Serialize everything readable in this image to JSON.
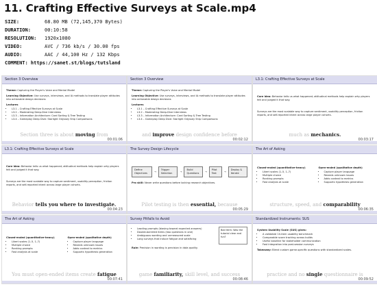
{
  "header": {
    "title": "11. Crafting Effective Surveys at Scale.mp4",
    "fields": [
      {
        "label": "SIZE:",
        "value": "68.80 MB (72,145,370 Bytes)"
      },
      {
        "label": "DURATION:",
        "value": "00:10:58"
      },
      {
        "label": "RESOLUTION:",
        "value": "1920x1080"
      },
      {
        "label": "VIDEO:",
        "value": "AVC / 736 kb/s / 30.00 fps"
      },
      {
        "label": "AUDIO:",
        "value": "AAC / 44,100 Hz / 132 Kbps"
      }
    ],
    "comment": "COMMENT: https://sanet.st/blogs/tutsland"
  },
  "thumbnails": [
    {
      "title": "Section 3 Overview",
      "timestamp": "00:01:06",
      "caption": [
        "Section three is about",
        "moving",
        "from"
      ],
      "blocks": [
        {
          "kind": "text",
          "label": "Theme:",
          "text": "Capturing the Player's Voice and Mental Model"
        },
        {
          "kind": "text",
          "label": "Learning Objective:",
          "text": "Use surveys, interviews, and IA methods to translate player attitudes into actionable design decisions"
        },
        {
          "kind": "list",
          "head": "Lectures",
          "items": [
            "L3.1 – Crafting Effective Surveys at Scale",
            "L3.2 – Moderating Deep-Dive Interviews",
            "L3.3 – Information Architecture: Card Sorting & Tree Testing",
            "L3.4 – Gameplay Deep Dive: Starlight Odyssey Ship Comparisons"
          ]
        }
      ]
    },
    {
      "title": "Section 3 Overview",
      "timestamp": "00:02:12",
      "caption": [
        "and",
        "improve",
        "design confidence before"
      ],
      "blocks": [
        {
          "kind": "text",
          "label": "Theme:",
          "text": "Capturing the Player's Voice and Mental Model"
        },
        {
          "kind": "text",
          "label": "Learning Objective:",
          "text": "Use surveys, interviews, and IA methods to translate player attitudes into actionable design decisions"
        },
        {
          "kind": "list",
          "head": "Lectures",
          "items": [
            "L3.1 – Crafting Effective Surveys at Scale",
            "L3.2 – Moderating Deep-Dive Interviews",
            "L3.3 – Information Architecture: Card Sorting & Tree Testing",
            "L3.4 – Gameplay Deep Dive: Starlight Odyssey Ship Comparisons"
          ]
        }
      ]
    },
    {
      "title": "L3.1: Crafting Effective Surveys at Scale",
      "timestamp": "00:03:17",
      "caption": [
        "much as",
        "mechanics.",
        ""
      ],
      "blocks": [
        {
          "kind": "text",
          "label": "Core idea:",
          "text": "Behavior tells us what happened; attitudinal methods help explain why players felt and judged it that way."
        },
        {
          "kind": "text",
          "label": "",
          "text": "Surveys are the most scalable way to capture sentiment, usability perception, friction reports, and self-reported intent across large player cohorts."
        }
      ]
    },
    {
      "title": "L3.1: Crafting Effective Surveys at Scale",
      "timestamp": "00:04:23",
      "caption": [
        "Behavior",
        "tells you where to investigate.",
        ""
      ],
      "blocks": [
        {
          "kind": "text",
          "label": "Core idea:",
          "text": "Behavior tells us what happened; attitudinal methods help explain why players felt and judged it that way."
        },
        {
          "kind": "text",
          "label": "",
          "text": "Surveys are the most scalable way to capture sentiment, usability perception, friction reports, and self-reported intent across large player cohorts."
        }
      ]
    },
    {
      "title": "The Survey Design Lifecycle",
      "timestamp": "00:05:29",
      "caption": [
        "Pilot testing is then",
        "essential,",
        "because"
      ],
      "blocks": [
        {
          "kind": "flow",
          "items": [
            "Define Objectives",
            "Trigger Selection",
            "Build Questions",
            "Pilot Test",
            "Deploy & Iterate"
          ]
        },
        {
          "kind": "text",
          "label": "Pro skill:",
          "text": "Never write questions before locking research objectives."
        }
      ]
    },
    {
      "title": "The Art of Asking",
      "timestamp": "00:06:35",
      "caption": [
        "structure, speed, and",
        "comparability",
        ""
      ],
      "blocks": [
        {
          "kind": "cols",
          "cols": [
            {
              "head": "Closed-ended (quantitative-heavy)",
              "items": [
                "Likert scales (1–5, 1–7)",
                "Multiple choice",
                "Ranking prompts",
                "Fast analysis at scale"
              ]
            },
            {
              "head": "Open-ended (qualitative depth)",
              "items": [
                "Capture player language",
                "Reveals unknown issues",
                "Adds context to metrics",
                "Supports hypothesis generation"
              ]
            }
          ]
        }
      ]
    },
    {
      "title": "The Art of Asking",
      "timestamp": "00:07:41",
      "caption": [
        "You must open-ended items create",
        "fatigue",
        ""
      ],
      "blocks": [
        {
          "kind": "cols",
          "cols": [
            {
              "head": "Closed-ended (quantitative-heavy)",
              "items": [
                "Likert scales (1–5, 1–7)",
                "Multiple choice",
                "Ranking prompts",
                "Fast analysis at scale"
              ]
            },
            {
              "head": "Open-ended (qualitative depth)",
              "items": [
                "Capture player language",
                "Reveals unknown issues",
                "Adds context to metrics",
                "Supports hypothesis generation"
              ]
            }
          ]
        }
      ]
    },
    {
      "title": "Survey Pitfalls to Avoid",
      "timestamp": "00:08:46",
      "caption": [
        "game",
        "familiarity,",
        "skill level, and success"
      ],
      "blocks": [
        {
          "kind": "note",
          "items": [
            "Leading prompts (biasing toward expected answers)",
            "Double-barreled items (two questions in one)",
            "Ambiguous wording and unmeasured scale",
            "Long surveys that induce fatigue and satisficing"
          ],
          "box": "Bad Item: Was the tutorial clear and fun?"
        },
        {
          "kind": "text",
          "label": "Rule:",
          "text": "Precision in wording is precision in data quality."
        }
      ]
    },
    {
      "title": "Standardized Instruments: SUS",
      "timestamp": "00:09:52",
      "caption": [
        "practice and no",
        "single",
        "questionnaire is"
      ],
      "blocks": [
        {
          "kind": "list",
          "head": "System Usability Scale (SUS) gives:",
          "items": [
            "A validated 10-item usability benchmark",
            "Comparable score tracking across builds",
            "Useful baseline for stakeholder communication",
            "Fast integration into post-session surveys"
          ]
        },
        {
          "kind": "text",
          "label": "Takeaway:",
          "text": "Blend custom game-specific questions with standardized scales."
        }
      ]
    }
  ]
}
